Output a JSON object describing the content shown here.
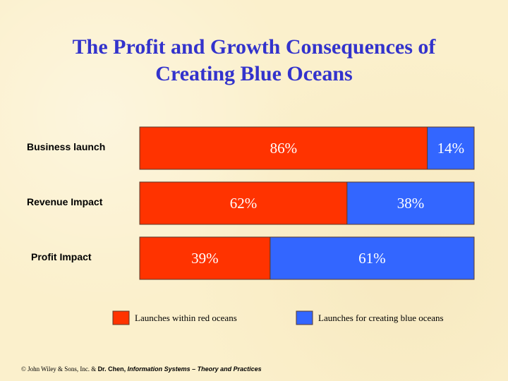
{
  "chart_data": {
    "type": "bar",
    "orientation": "horizontal",
    "stacked": true,
    "title_lines": [
      "The Profit and Growth Consequences of",
      "Creating Blue Oceans"
    ],
    "categories": [
      "Business launch",
      "Revenue Impact",
      "Profit Impact"
    ],
    "series": [
      {
        "name": "Launches within red oceans",
        "values": [
          86,
          62,
          39
        ],
        "labels": [
          "86%",
          "62%",
          "39%"
        ],
        "color": "#ff3300"
      },
      {
        "name": "Launches for creating blue oceans",
        "values": [
          14,
          38,
          61
        ],
        "labels": [
          "14%",
          "38%",
          "61%"
        ],
        "color": "#3366ff"
      }
    ],
    "xlim": [
      0,
      100
    ],
    "grid": false,
    "legend_position": "bottom"
  },
  "footer": {
    "copyright": "© John Wiley & Sons, Inc. & ",
    "author": "Dr. Chen, ",
    "book": "Information Systems – Theory and Practices"
  }
}
